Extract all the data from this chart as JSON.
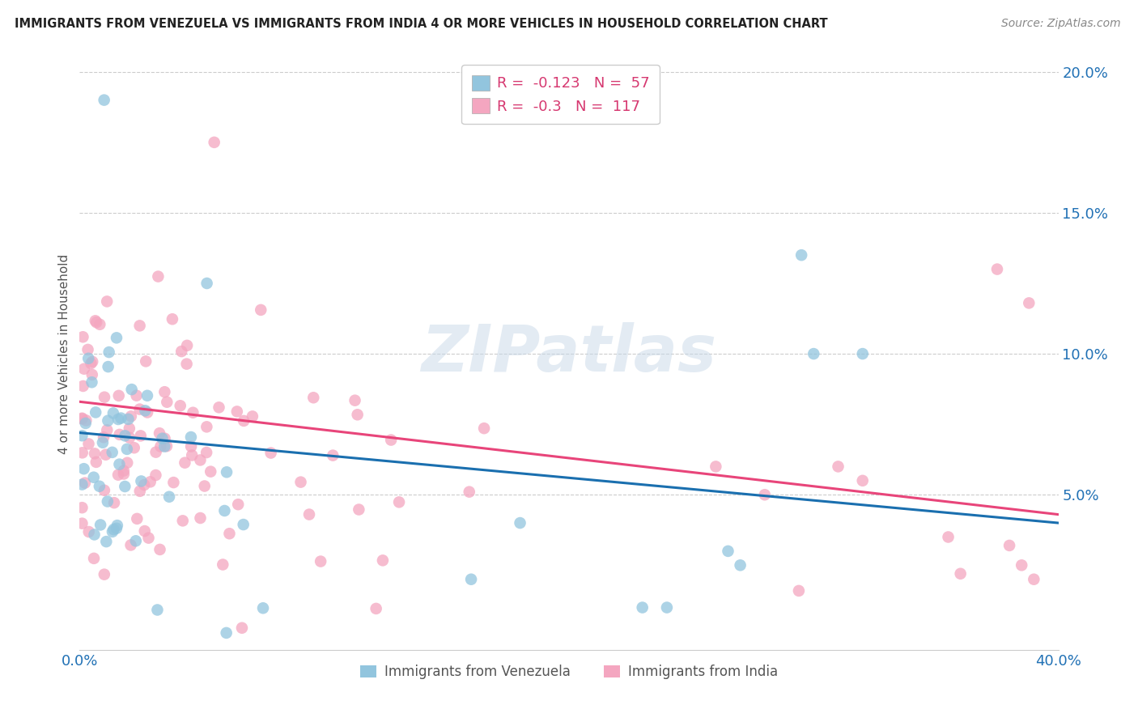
{
  "title": "IMMIGRANTS FROM VENEZUELA VS IMMIGRANTS FROM INDIA 4 OR MORE VEHICLES IN HOUSEHOLD CORRELATION CHART",
  "source": "Source: ZipAtlas.com",
  "ylabel": "4 or more Vehicles in Household",
  "xlim": [
    0.0,
    0.4
  ],
  "ylim": [
    -0.005,
    0.205
  ],
  "legend1_label": "Immigrants from Venezuela",
  "legend2_label": "Immigrants from India",
  "R_venezuela": -0.123,
  "N_venezuela": 57,
  "R_india": -0.3,
  "N_india": 117,
  "color_venezuela": "#92c5de",
  "color_india": "#f4a6c0",
  "line_color_venezuela": "#1a6faf",
  "line_color_india": "#e8457a",
  "watermark": "ZIPatlas",
  "background_color": "#ffffff",
  "dot_size": 110,
  "dot_alpha": 0.75,
  "line_intercept_ven": 0.072,
  "line_slope_ven": -0.08,
  "line_intercept_ind": 0.083,
  "line_slope_ind": -0.1
}
